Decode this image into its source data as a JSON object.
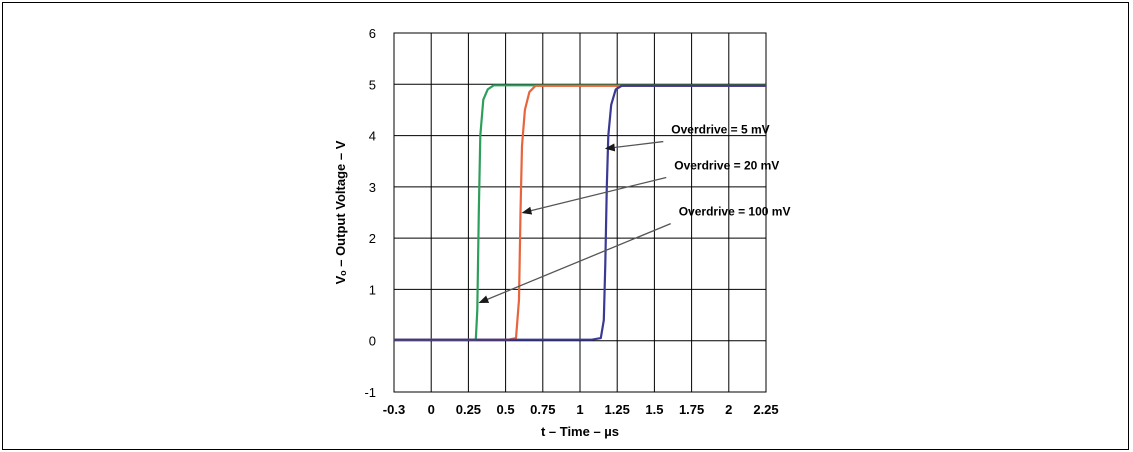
{
  "chart_data": {
    "type": "line",
    "title": "",
    "xlabel": "t – Time – µs",
    "ylabel": "Vₒ – Output Voltage – V",
    "xlim": [
      -0.3,
      2.25
    ],
    "ylim": [
      -1,
      6
    ],
    "x_ticks": [
      "-0.3",
      "0",
      "0.25",
      "0.5",
      "0.75",
      "1",
      "1.25",
      "1.5",
      "1.75",
      "2",
      "2.25"
    ],
    "y_ticks": [
      "-1",
      "0",
      "1",
      "2",
      "3",
      "4",
      "5",
      "6"
    ],
    "grid": true,
    "legend": "none",
    "series": [
      {
        "color": "#2e9e5b",
        "points": [
          [
            -0.3,
            0.02
          ],
          [
            0.1,
            0.02
          ],
          [
            0.3,
            0.02
          ],
          [
            0.31,
            0.6
          ],
          [
            0.32,
            2.5
          ],
          [
            0.33,
            4.0
          ],
          [
            0.35,
            4.7
          ],
          [
            0.38,
            4.9
          ],
          [
            0.42,
            4.98
          ],
          [
            2.25,
            4.98
          ]
        ]
      },
      {
        "color": "#e8643c",
        "points": [
          [
            -0.3,
            0.02
          ],
          [
            0.52,
            0.02
          ],
          [
            0.57,
            0.05
          ],
          [
            0.59,
            0.8
          ],
          [
            0.6,
            2.5
          ],
          [
            0.61,
            3.8
          ],
          [
            0.63,
            4.5
          ],
          [
            0.66,
            4.85
          ],
          [
            0.7,
            4.97
          ],
          [
            2.25,
            4.97
          ]
        ]
      },
      {
        "color": "#3a3a94",
        "points": [
          [
            -0.3,
            0.02
          ],
          [
            1.08,
            0.02
          ],
          [
            1.14,
            0.05
          ],
          [
            1.16,
            0.4
          ],
          [
            1.17,
            1.5
          ],
          [
            1.18,
            3.0
          ],
          [
            1.19,
            4.0
          ],
          [
            1.21,
            4.6
          ],
          [
            1.24,
            4.9
          ],
          [
            1.28,
            4.97
          ],
          [
            2.25,
            4.97
          ]
        ]
      }
    ],
    "annotations": [
      {
        "text": "Overdrive = 5 mV",
        "label_at": [
          1.6,
          4.0
        ],
        "arrow_to": [
          1.18,
          3.75
        ]
      },
      {
        "text": "Overdrive = 20 mV",
        "label_at": [
          1.62,
          3.3
        ],
        "arrow_to": [
          0.62,
          2.5
        ]
      },
      {
        "text": "Overdrive = 100 mV",
        "label_at": [
          1.65,
          2.4
        ],
        "arrow_to": [
          0.33,
          0.75
        ]
      }
    ]
  }
}
